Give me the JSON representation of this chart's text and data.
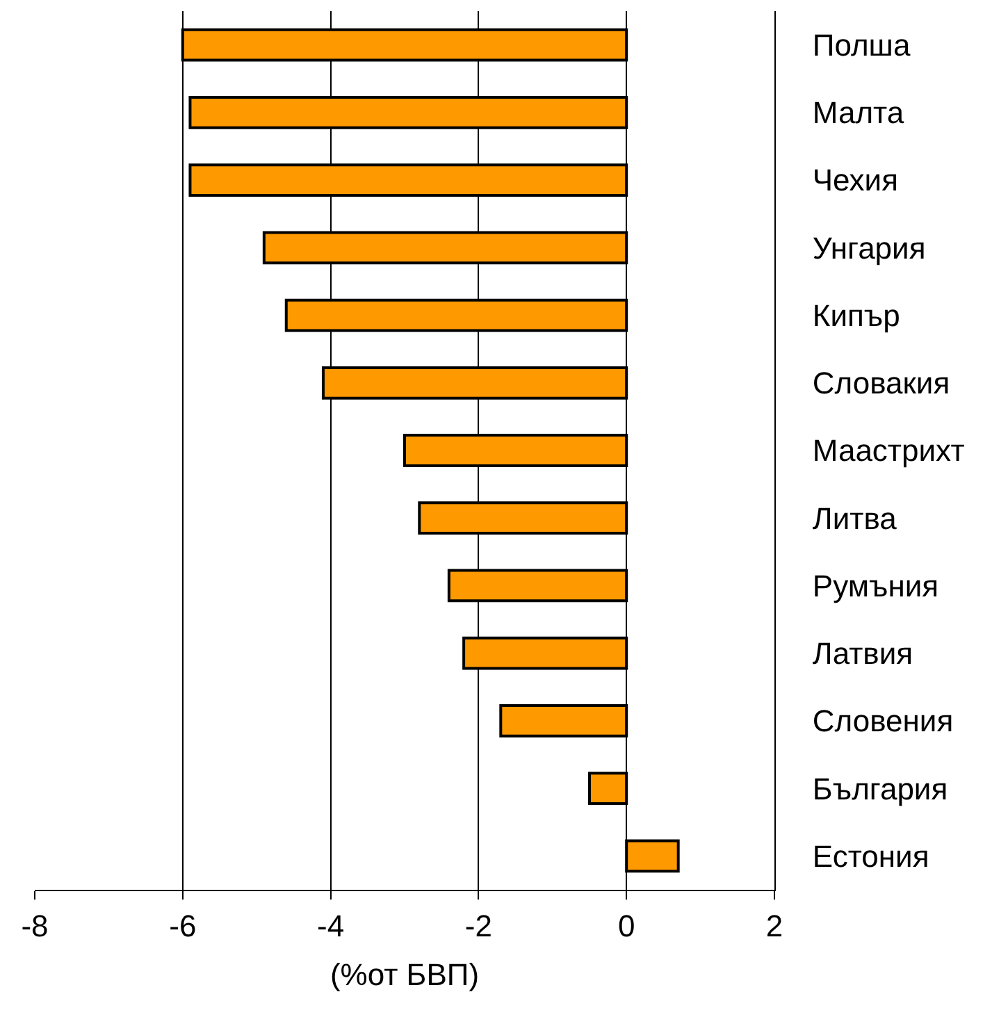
{
  "chart_data": {
    "type": "bar",
    "orientation": "horizontal",
    "xlabel": "(%от БВП)",
    "categories": [
      "Полша",
      "Малта",
      "Чехия",
      "Унгария",
      "Кипър",
      "Словакия",
      "Маастрихт",
      "Литва",
      "Румъния",
      "Латвия",
      "Словения",
      "България",
      "Естония"
    ],
    "values": [
      -6.0,
      -5.9,
      -5.9,
      -4.9,
      -4.6,
      -4.1,
      -3.0,
      -2.8,
      -2.4,
      -2.2,
      -1.7,
      -0.5,
      0.7
    ],
    "color": "#ff9900",
    "xlim": [
      -8,
      2
    ],
    "xticks": [
      -8,
      -6,
      -4,
      -2,
      0,
      2
    ],
    "grid": "x",
    "legend": false
  }
}
